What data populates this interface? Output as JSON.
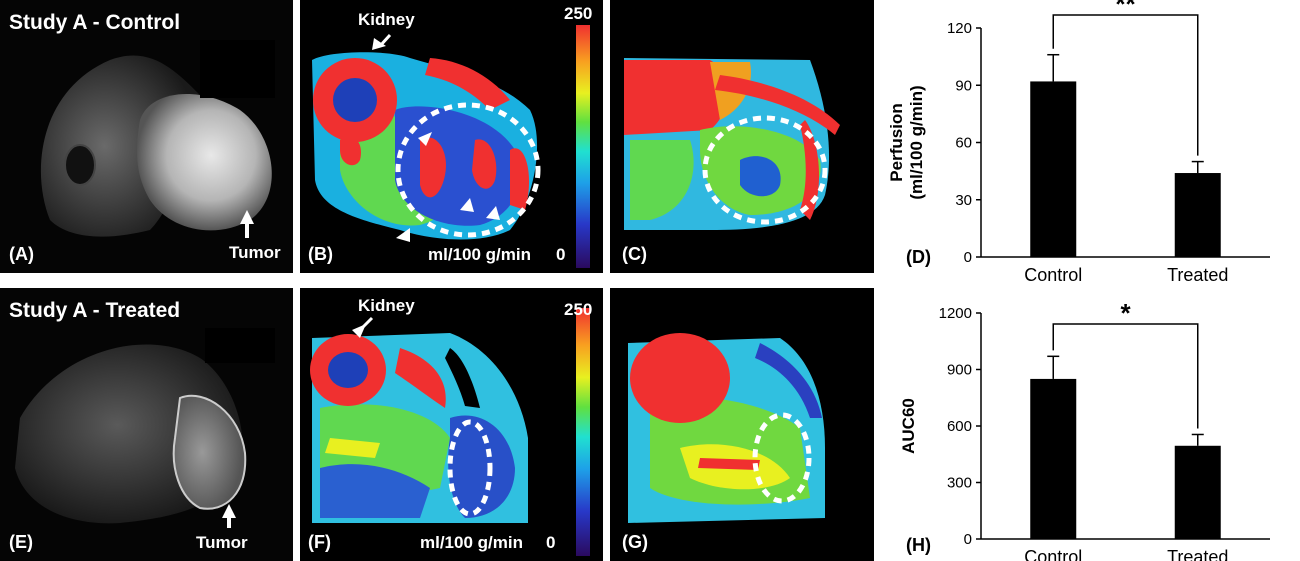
{
  "figure": {
    "row1": {
      "title": "Study A - Control",
      "kidney_label": "Kidney",
      "tumor_label": "Tumor",
      "colorbar_max": "250",
      "colorbar_min": "0",
      "unit_label": "ml/100 g/min",
      "panel_a": "(A)",
      "panel_b": "(B)",
      "panel_c": "(C)",
      "panel_d": "(D)"
    },
    "row2": {
      "title": "Study A - Treated",
      "kidney_label": "Kidney",
      "tumor_label": "Tumor",
      "colorbar_max": "250",
      "colorbar_min": "0",
      "unit_label": "ml/100 g/min",
      "panel_e": "(E)",
      "panel_f": "(F)",
      "panel_g": "(G)",
      "panel_h": "(H)"
    },
    "colors": {
      "bar": "#000000",
      "colormap": [
        "#2a0a5e",
        "#2838c8",
        "#1ea0e8",
        "#20e0d0",
        "#60e040",
        "#e8f020",
        "#f8a020",
        "#f03030"
      ]
    }
  },
  "chart_data": [
    {
      "type": "bar",
      "panel": "(D)",
      "categories": [
        "Control",
        "Treated"
      ],
      "values": [
        92,
        44
      ],
      "errors": [
        14,
        6
      ],
      "ylabel": "Perfusion (ml/100 g/min)",
      "ylabel_line1": "Perfusion",
      "ylabel_line2": "(ml/100 g/min)",
      "ylim": [
        0,
        120
      ],
      "yticks": [
        "0",
        "30",
        "60",
        "90",
        "120"
      ],
      "significance": "**",
      "grid": false
    },
    {
      "type": "bar",
      "panel": "(H)",
      "categories": [
        "Control",
        "Treated"
      ],
      "values": [
        850,
        495
      ],
      "errors": [
        120,
        60
      ],
      "ylabel": "AUC60",
      "ylim": [
        0,
        1200
      ],
      "yticks": [
        "0",
        "300",
        "600",
        "900",
        "1200"
      ],
      "significance": "*",
      "grid": false
    }
  ]
}
